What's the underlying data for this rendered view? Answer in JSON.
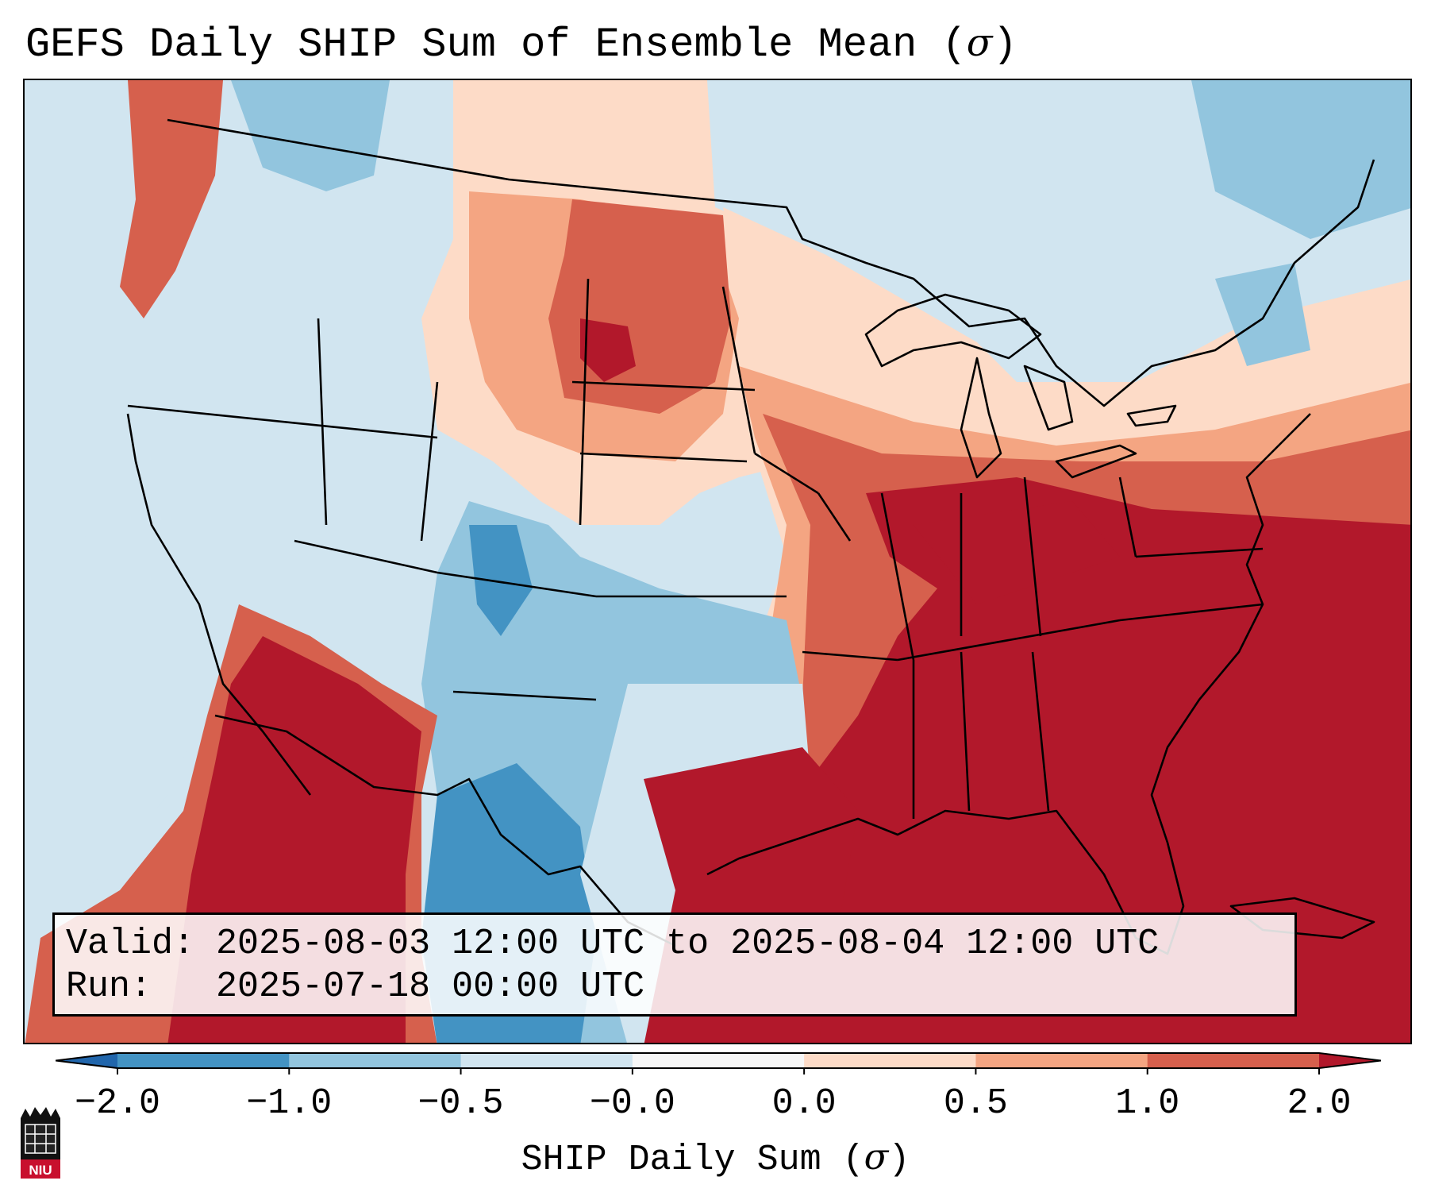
{
  "title": {
    "prefix": "GEFS Daily SHIP Sum of Ensemble Mean (",
    "symbol": "σ",
    "suffix": ")"
  },
  "info": {
    "valid_label": "Valid:",
    "valid_value": "2025-08-03 12:00 UTC to 2025-08-04 12:00 UTC",
    "run_label": "Run:",
    "run_value": "2025-07-18 00:00 UTC"
  },
  "colorbar": {
    "label_prefix": "SHIP Daily Sum (",
    "label_symbol": "σ",
    "label_suffix": ")",
    "ticks": [
      "−2.0",
      "−1.0",
      "−0.5",
      "−0.0",
      "0.0",
      "0.5",
      "1.0",
      "2.0"
    ],
    "bins": [
      {
        "from": -2.0,
        "to": -1.0,
        "color": "#4393c3"
      },
      {
        "from": -1.0,
        "to": -0.5,
        "color": "#92c5de"
      },
      {
        "from": -0.5,
        "to": -0.0,
        "color": "#d1e5f0"
      },
      {
        "from": -0.0,
        "to": 0.0,
        "color": "#f7f7f7"
      },
      {
        "from": 0.0,
        "to": 0.5,
        "color": "#fddbc7"
      },
      {
        "from": 0.5,
        "to": 1.0,
        "color": "#f4a582"
      },
      {
        "from": 1.0,
        "to": 2.0,
        "color": "#d6604d"
      }
    ],
    "under_color": "#2166ac",
    "over_color": "#b2182b"
  },
  "logo": {
    "text": "NIU"
  },
  "colors": {
    "strong_red": "#b2182b",
    "red": "#d6604d",
    "salmon": "#f4a582",
    "peach": "#fddbc7",
    "light_blue": "#d1e5f0",
    "blue": "#92c5de",
    "deep_blue": "#4393c3"
  }
}
